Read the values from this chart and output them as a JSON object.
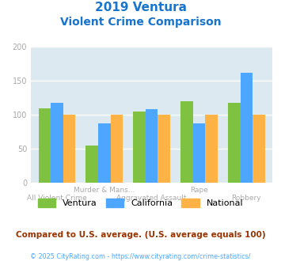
{
  "title_line1": "2019 Ventura",
  "title_line2": "Violent Crime Comparison",
  "title_color": "#1874cd",
  "ventura_values": [
    110,
    55,
    105,
    120,
    118
  ],
  "california_values": [
    118,
    87,
    108,
    87,
    162
  ],
  "national_values": [
    100,
    100,
    100,
    100,
    100
  ],
  "bar_colors": {
    "ventura": "#7fc241",
    "california": "#4da6ff",
    "national": "#ffb347"
  },
  "ylim": [
    0,
    200
  ],
  "yticks": [
    0,
    50,
    100,
    150,
    200
  ],
  "plot_bg": "#dce9f0",
  "grid_color": "#ffffff",
  "note_text": "Compared to U.S. average. (U.S. average equals 100)",
  "note_color": "#993300",
  "footer_text": "© 2025 CityRating.com - https://www.cityrating.com/crime-statistics/",
  "footer_color": "#4da6ff",
  "legend_labels": [
    "Ventura",
    "California",
    "National"
  ],
  "upper_labels": {
    "1": "Murder & Mans...",
    "3": "Rape"
  },
  "lower_labels": {
    "0": "All Violent Crime",
    "2": "Aggravated Assault",
    "4": "Robbery"
  }
}
